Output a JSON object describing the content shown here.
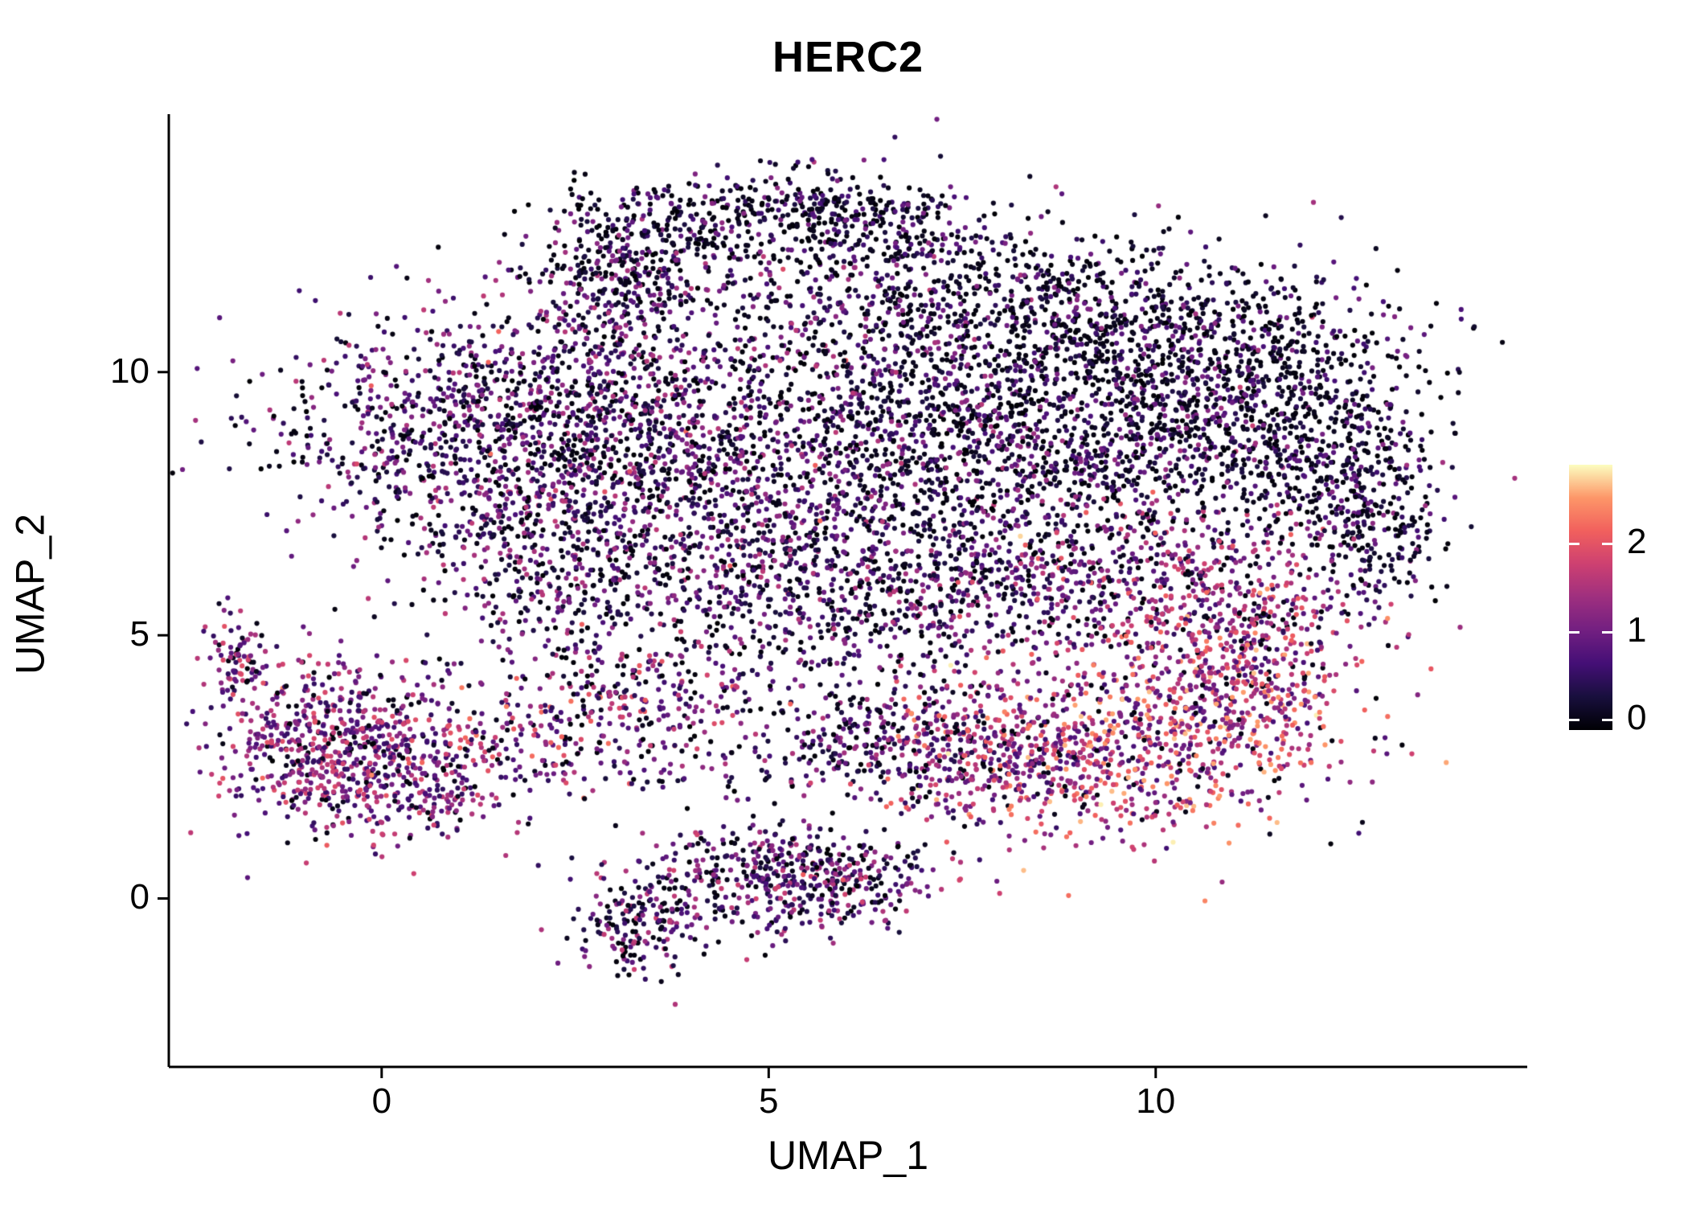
{
  "chart_data": {
    "type": "scatter",
    "title": "HERC2",
    "xlabel": "UMAP_1",
    "ylabel": "UMAP_2",
    "xlim": [
      -2.75,
      14.8
    ],
    "ylim": [
      -3.2,
      14.9
    ],
    "x_ticks": [
      0,
      5,
      10
    ],
    "y_ticks": [
      0,
      5,
      10
    ],
    "grid": false,
    "legend_position": "right",
    "point_radius": 3.1,
    "seed": 42,
    "colorbar": {
      "ticks": [
        0,
        1,
        2
      ],
      "vmin": -0.13,
      "vmax": 2.9,
      "palette": [
        "#000004",
        "#180f3d",
        "#440f76",
        "#721f81",
        "#9e2f7f",
        "#cd4071",
        "#f1605d",
        "#fd9668",
        "#fcfdbf"
      ]
    },
    "expression_profiles": {
      "dark": {
        "p0": 0.5,
        "base": 0.15,
        "spread": 1.15,
        "pow": 1.6
      },
      "darkmid": {
        "p0": 0.42,
        "base": 0.25,
        "spread": 1.25,
        "pow": 1.5
      },
      "mid": {
        "p0": 0.32,
        "base": 0.3,
        "spread": 1.4,
        "pow": 1.4
      },
      "midhigh": {
        "p0": 0.18,
        "base": 0.5,
        "spread": 1.7,
        "pow": 1.3
      },
      "high": {
        "p0": 0.08,
        "base": 0.7,
        "spread": 2.0,
        "pow": 1.2
      },
      "left": {
        "p0": 0.15,
        "base": 0.55,
        "spread": 1.5,
        "pow": 1.4
      },
      "connector": {
        "p0": 0.2,
        "base": 0.5,
        "spread": 1.9,
        "pow": 1.2
      },
      "bottom": {
        "p0": 0.28,
        "base": 0.35,
        "spread": 1.5,
        "pow": 1.4
      }
    },
    "clusters": [
      {
        "cx": 5.1,
        "cy": 13.1,
        "sx": 1.2,
        "sy": 0.35,
        "n": 300,
        "profile": "dark"
      },
      {
        "cx": 3.6,
        "cy": 12.4,
        "sx": 0.7,
        "sy": 0.5,
        "n": 220,
        "profile": "dark"
      },
      {
        "cx": 2.95,
        "cy": 11.5,
        "sx": 0.5,
        "sy": 0.6,
        "n": 200,
        "profile": "mid"
      },
      {
        "cx": 6.2,
        "cy": 12.6,
        "sx": 0.8,
        "sy": 0.4,
        "n": 180,
        "profile": "dark"
      },
      {
        "cx": 6.0,
        "cy": 11.0,
        "sx": 1.1,
        "sy": 0.8,
        "n": 220,
        "profile": "mid"
      },
      {
        "cx": 7.8,
        "cy": 11.3,
        "sx": 1.4,
        "sy": 0.7,
        "n": 420,
        "profile": "dark"
      },
      {
        "cx": 9.9,
        "cy": 10.8,
        "sx": 1.4,
        "sy": 0.8,
        "n": 480,
        "profile": "dark"
      },
      {
        "cx": 11.5,
        "cy": 9.9,
        "sx": 1.0,
        "sy": 0.8,
        "n": 350,
        "profile": "dark"
      },
      {
        "cx": 0.9,
        "cy": 9.0,
        "sx": 1.2,
        "sy": 1.1,
        "n": 750,
        "profile": "mid"
      },
      {
        "cx": 2.8,
        "cy": 9.3,
        "sx": 1.0,
        "sy": 1.0,
        "n": 500,
        "profile": "mid"
      },
      {
        "cx": 4.6,
        "cy": 8.2,
        "sx": 1.4,
        "sy": 1.2,
        "n": 700,
        "profile": "mid"
      },
      {
        "cx": 7.6,
        "cy": 8.8,
        "sx": 1.5,
        "sy": 1.1,
        "n": 900,
        "profile": "darkmid"
      },
      {
        "cx": 10.3,
        "cy": 8.6,
        "sx": 1.3,
        "sy": 1.0,
        "n": 650,
        "profile": "darkmid"
      },
      {
        "cx": 12.3,
        "cy": 8.2,
        "sx": 0.7,
        "sy": 0.8,
        "n": 280,
        "profile": "dark"
      },
      {
        "cx": 12.9,
        "cy": 7.0,
        "sx": 0.4,
        "sy": 0.7,
        "n": 160,
        "profile": "darkmid"
      },
      {
        "cx": 2.2,
        "cy": 6.6,
        "sx": 1.0,
        "sy": 0.9,
        "n": 380,
        "profile": "mid"
      },
      {
        "cx": 5.0,
        "cy": 6.1,
        "sx": 1.5,
        "sy": 0.8,
        "n": 420,
        "profile": "mid"
      },
      {
        "cx": 7.5,
        "cy": 6.2,
        "sx": 1.3,
        "sy": 0.8,
        "n": 420,
        "profile": "mid"
      },
      {
        "cx": 9.8,
        "cy": 6.0,
        "sx": 1.2,
        "sy": 0.9,
        "n": 400,
        "profile": "midhigh"
      },
      {
        "cx": 11.3,
        "cy": 5.4,
        "sx": 0.8,
        "sy": 0.8,
        "n": 250,
        "profile": "midhigh"
      },
      {
        "cx": 9.6,
        "cy": 2.9,
        "sx": 1.3,
        "sy": 0.9,
        "n": 750,
        "profile": "high"
      },
      {
        "cx": 11.0,
        "cy": 3.9,
        "sx": 0.8,
        "sy": 0.7,
        "n": 280,
        "profile": "high"
      },
      {
        "cx": 7.8,
        "cy": 2.6,
        "sx": 0.9,
        "sy": 0.7,
        "n": 300,
        "profile": "midhigh"
      },
      {
        "cx": 6.4,
        "cy": 3.3,
        "sx": 1.0,
        "sy": 0.55,
        "n": 220,
        "profile": "mid"
      },
      {
        "cx": -0.55,
        "cy": 2.9,
        "sx": 0.85,
        "sy": 0.8,
        "n": 650,
        "profile": "left"
      },
      {
        "cx": -1.85,
        "cy": 4.6,
        "sx": 0.22,
        "sy": 0.4,
        "n": 80,
        "profile": "left"
      },
      {
        "cx": 0.6,
        "cy": 2.1,
        "sx": 0.6,
        "sy": 0.5,
        "n": 180,
        "profile": "left"
      },
      {
        "cx": 2.0,
        "cy": 3.0,
        "sx": 0.8,
        "sy": 0.55,
        "n": 160,
        "profile": "connector"
      },
      {
        "cx": 3.3,
        "cy": 3.9,
        "sx": 0.7,
        "sy": 0.5,
        "n": 160,
        "profile": "midhigh"
      },
      {
        "cx": 5.0,
        "cy": 0.45,
        "sx": 0.85,
        "sy": 0.55,
        "n": 420,
        "profile": "bottom"
      },
      {
        "cx": 3.3,
        "cy": -0.6,
        "sx": 0.4,
        "sy": 0.55,
        "n": 170,
        "profile": "bottom"
      },
      {
        "cx": 6.2,
        "cy": 0.3,
        "sx": 0.5,
        "sy": 0.4,
        "n": 120,
        "profile": "bottom"
      },
      {
        "cx": 6.5,
        "cy": 9.0,
        "sx": 3.3,
        "sy": 2.3,
        "n": 280,
        "profile": "mid"
      },
      {
        "cx": 4.5,
        "cy": 4.8,
        "sx": 1.8,
        "sy": 0.7,
        "n": 180,
        "profile": "mid"
      },
      {
        "cx": 4.7,
        "cy": 2.5,
        "sx": 1.6,
        "sy": 0.25,
        "n": 110,
        "profile": "mid"
      }
    ]
  }
}
